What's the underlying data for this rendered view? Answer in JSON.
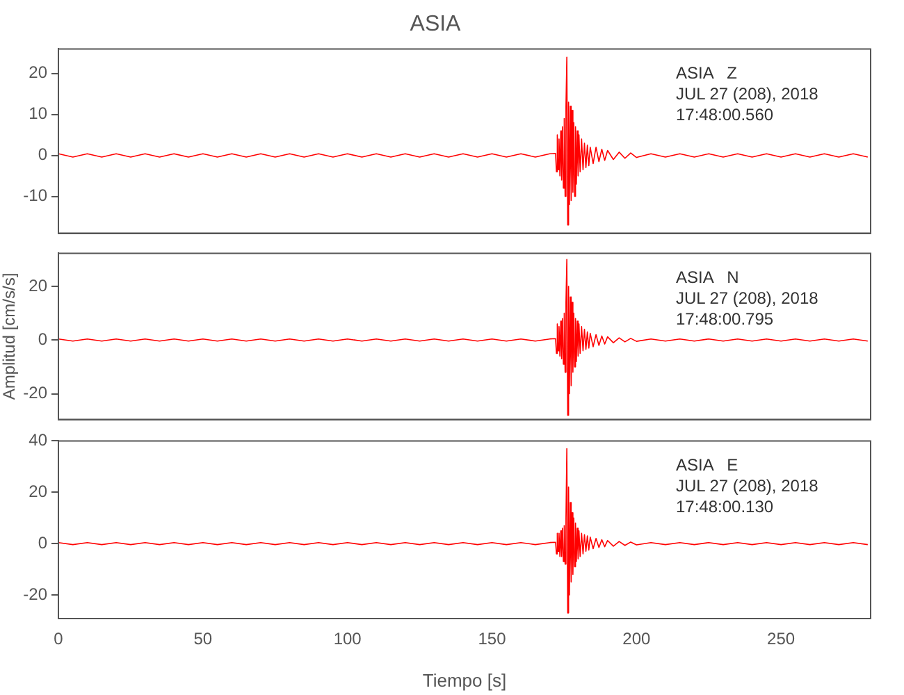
{
  "chart_data": [
    {
      "type": "line",
      "title": "ASIA",
      "annotations": [
        "ASIA   Z",
        "JUL 27 (208), 2018",
        "17:48:00.560"
      ],
      "tick_labels": "y",
      "legend": false,
      "xlim": [
        0,
        281
      ],
      "xticks": [
        0,
        50,
        100,
        150,
        200,
        250
      ],
      "ylim": [
        -19,
        26
      ],
      "yticks": [
        -10,
        0,
        10,
        20
      ],
      "x": [
        0,
        5,
        10,
        15,
        20,
        25,
        30,
        35,
        40,
        45,
        50,
        55,
        60,
        65,
        70,
        75,
        80,
        85,
        90,
        95,
        100,
        105,
        110,
        115,
        120,
        125,
        130,
        135,
        140,
        145,
        150,
        155,
        160,
        165,
        170,
        172,
        172.3,
        172.6,
        172.9,
        173.2,
        173.5,
        173.8,
        174.1,
        174.4,
        174.7,
        175,
        175.3,
        175.6,
        175.9,
        176.2,
        176.5,
        176.8,
        177.1,
        177.4,
        177.7,
        178,
        178.3,
        178.6,
        178.9,
        179.2,
        179.5,
        179.8,
        180.1,
        180.5,
        181,
        181.5,
        182,
        182.5,
        183,
        183.5,
        184,
        185,
        186,
        187,
        188,
        189,
        190,
        192,
        194,
        196,
        198,
        200,
        205,
        210,
        215,
        220,
        225,
        230,
        235,
        240,
        245,
        250,
        255,
        260,
        265,
        270,
        275,
        280
      ],
      "series": [
        {
          "color": "#ff0000",
          "values": [
            0.4,
            -0.4,
            0.4,
            -0.4,
            0.4,
            -0.4,
            0.4,
            -0.4,
            0.4,
            -0.4,
            0.4,
            -0.4,
            0.4,
            -0.4,
            0.4,
            -0.4,
            0.4,
            -0.4,
            0.4,
            -0.4,
            0.4,
            -0.4,
            0.4,
            -0.4,
            0.4,
            -0.4,
            0.4,
            -0.4,
            0.4,
            -0.4,
            0.4,
            -0.4,
            0.4,
            -0.4,
            0.4,
            0.5,
            -4,
            5,
            -3.5,
            4,
            -5,
            6,
            -6,
            7,
            -8,
            9,
            -10,
            12,
            24,
            -17,
            13,
            -12,
            12,
            -11,
            11,
            -9,
            8,
            -10,
            7,
            -7,
            6,
            -5,
            5,
            -4,
            4,
            -3.5,
            3,
            -3,
            2.5,
            -2.5,
            2,
            -2,
            2,
            -1.5,
            1.5,
            -1.2,
            1.2,
            -1,
            0.8,
            -0.7,
            0.6,
            -0.5,
            0.4,
            -0.4,
            0.4,
            -0.4,
            0.4,
            -0.4,
            0.4,
            -0.4,
            0.4,
            -0.4,
            0.4,
            -0.4,
            0.4,
            -0.4,
            0.4,
            -0.4
          ]
        }
      ]
    },
    {
      "type": "line",
      "ylabel": "Amplitud [cm/s/s]",
      "annotations": [
        "ASIA   N",
        "JUL 27 (208), 2018",
        "17:48:00.795"
      ],
      "tick_labels": "y",
      "legend": false,
      "xlim": [
        0,
        281
      ],
      "xticks": [
        0,
        50,
        100,
        150,
        200,
        250
      ],
      "ylim": [
        -29.6,
        32.3
      ],
      "yticks": [
        -20,
        0,
        20
      ],
      "x": [
        0,
        5,
        10,
        15,
        20,
        25,
        30,
        35,
        40,
        45,
        50,
        55,
        60,
        65,
        70,
        75,
        80,
        85,
        90,
        95,
        100,
        105,
        110,
        115,
        120,
        125,
        130,
        135,
        140,
        145,
        150,
        155,
        160,
        165,
        170,
        172,
        172.3,
        172.6,
        172.9,
        173.2,
        173.5,
        173.8,
        174.1,
        174.4,
        174.7,
        175,
        175.3,
        175.6,
        175.9,
        176.2,
        176.5,
        176.8,
        177.1,
        177.4,
        177.7,
        178,
        178.3,
        178.6,
        178.9,
        179.2,
        179.5,
        179.8,
        180.1,
        180.5,
        181,
        181.5,
        182,
        182.5,
        183,
        183.5,
        184,
        185,
        186,
        187,
        188,
        189,
        190,
        192,
        194,
        196,
        198,
        200,
        205,
        210,
        215,
        220,
        225,
        230,
        235,
        240,
        245,
        250,
        255,
        260,
        265,
        270,
        275,
        280
      ],
      "series": [
        {
          "color": "#ff0000",
          "values": [
            0.4,
            -0.4,
            0.4,
            -0.4,
            0.4,
            -0.4,
            0.4,
            -0.4,
            0.4,
            -0.4,
            0.4,
            -0.4,
            0.4,
            -0.4,
            0.4,
            -0.4,
            0.4,
            -0.4,
            0.4,
            -0.4,
            0.4,
            -0.4,
            0.4,
            -0.4,
            0.4,
            -0.4,
            0.4,
            -0.4,
            0.4,
            -0.4,
            0.4,
            -0.4,
            0.4,
            -0.4,
            0.4,
            0.5,
            -5,
            6,
            -4,
            5,
            -6,
            7,
            -7,
            8,
            -9,
            10,
            -12,
            14,
            30,
            -28,
            20,
            -20,
            16,
            -17,
            14,
            -12,
            10,
            -10,
            8,
            -8,
            7,
            -6,
            6,
            -5,
            5,
            -4,
            4,
            -3.5,
            3,
            -3,
            2.5,
            -2.5,
            2,
            -2,
            1.5,
            -1.5,
            1.2,
            -1,
            0.8,
            -0.7,
            0.6,
            -0.5,
            0.4,
            -0.4,
            0.4,
            -0.4,
            0.4,
            -0.4,
            0.4,
            -0.4,
            0.4,
            -0.4,
            0.4,
            -0.4,
            0.4,
            -0.4,
            0.4,
            -0.4
          ]
        }
      ]
    },
    {
      "type": "line",
      "xlabel": "Tiempo [s]",
      "annotations": [
        "ASIA   E",
        "JUL 27 (208), 2018",
        "17:48:00.130"
      ],
      "legend": false,
      "xlim": [
        0,
        281
      ],
      "xticks": [
        0,
        50,
        100,
        150,
        200,
        250
      ],
      "ylim": [
        -29.2,
        40
      ],
      "yticks": [
        -20,
        0,
        20,
        40
      ],
      "x": [
        0,
        5,
        10,
        15,
        20,
        25,
        30,
        35,
        40,
        45,
        50,
        55,
        60,
        65,
        70,
        75,
        80,
        85,
        90,
        95,
        100,
        105,
        110,
        115,
        120,
        125,
        130,
        135,
        140,
        145,
        150,
        155,
        160,
        165,
        170,
        172,
        172.3,
        172.6,
        172.9,
        173.2,
        173.5,
        173.8,
        174.1,
        174.4,
        174.7,
        175,
        175.3,
        175.6,
        175.9,
        176.2,
        176.5,
        176.8,
        177.1,
        177.4,
        177.7,
        178,
        178.3,
        178.6,
        178.9,
        179.2,
        179.5,
        179.8,
        180.1,
        180.5,
        181,
        181.5,
        182,
        182.5,
        183,
        183.5,
        184,
        185,
        186,
        187,
        188,
        189,
        190,
        192,
        194,
        196,
        198,
        200,
        205,
        210,
        215,
        220,
        225,
        230,
        235,
        240,
        245,
        250,
        255,
        260,
        265,
        270,
        275,
        280
      ],
      "series": [
        {
          "color": "#ff0000",
          "values": [
            0.4,
            -0.4,
            0.4,
            -0.4,
            0.4,
            -0.4,
            0.4,
            -0.4,
            0.4,
            -0.4,
            0.4,
            -0.4,
            0.4,
            -0.4,
            0.4,
            -0.4,
            0.4,
            -0.4,
            0.4,
            -0.4,
            0.4,
            -0.4,
            0.4,
            -0.4,
            0.4,
            -0.4,
            0.4,
            -0.4,
            0.4,
            -0.4,
            0.4,
            -0.4,
            0.4,
            -0.4,
            0.4,
            0.5,
            -4,
            4,
            -3,
            4,
            -5,
            5,
            -5,
            6,
            -7,
            7,
            -8,
            10,
            37,
            -27,
            22,
            -20,
            16,
            -15,
            12,
            -12,
            10,
            -9,
            8,
            -7,
            6,
            -6,
            5,
            -5,
            4,
            -4,
            3.5,
            -3,
            3,
            -2.5,
            2.5,
            -2,
            2,
            -1.5,
            1.5,
            -1.2,
            1.2,
            -1,
            0.8,
            -0.7,
            0.6,
            -0.5,
            0.4,
            -0.4,
            0.4,
            -0.4,
            0.4,
            -0.4,
            0.4,
            -0.4,
            0.4,
            -0.4,
            0.4,
            -0.4,
            0.4,
            -0.4,
            0.4,
            -0.4
          ]
        }
      ]
    }
  ]
}
